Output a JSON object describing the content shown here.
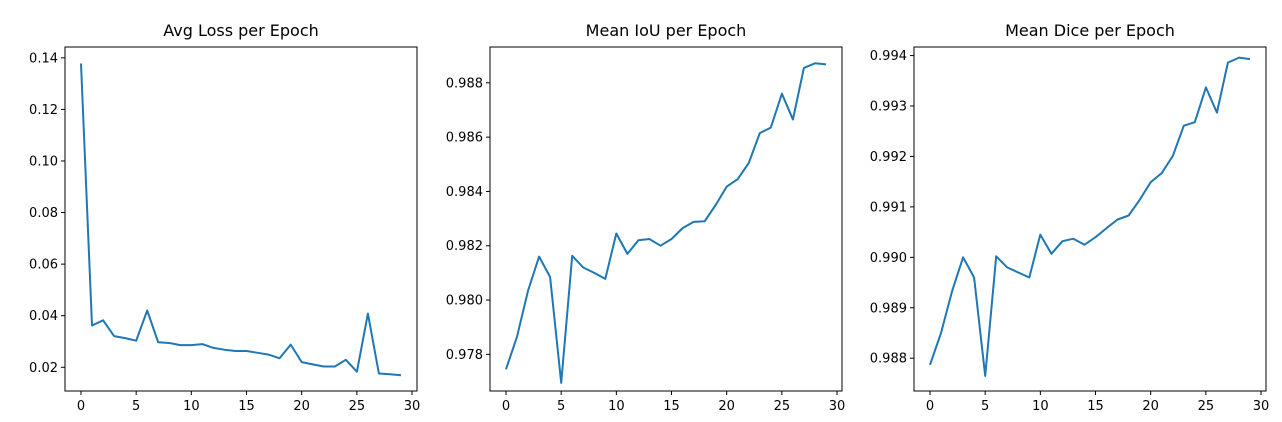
{
  "chart_data": [
    {
      "type": "line",
      "title": "Avg Loss per Epoch",
      "xlabel": "",
      "ylabel": "",
      "xlim": [
        -1.45,
        30.45
      ],
      "ylim": [
        0.0108,
        0.1442
      ],
      "xticks": [
        0,
        5,
        10,
        15,
        20,
        25,
        30
      ],
      "yticks": [
        0.02,
        0.04,
        0.06,
        0.08,
        0.1,
        0.12,
        0.14
      ],
      "ytick_labels": [
        "0.02",
        "0.04",
        "0.06",
        "0.08",
        "0.10",
        "0.12",
        "0.14"
      ],
      "grid": false,
      "color": "#1f77b4",
      "x": [
        0,
        1,
        2,
        3,
        4,
        5,
        6,
        7,
        8,
        9,
        10,
        11,
        12,
        13,
        14,
        15,
        16,
        17,
        18,
        19,
        20,
        21,
        22,
        23,
        24,
        25,
        26,
        27,
        28,
        29
      ],
      "y": [
        0.1378,
        0.0362,
        0.0382,
        0.0321,
        0.0313,
        0.0303,
        0.042,
        0.0297,
        0.0294,
        0.0286,
        0.0286,
        0.029,
        0.0275,
        0.0268,
        0.0263,
        0.0263,
        0.0256,
        0.0249,
        0.0235,
        0.0288,
        0.022,
        0.0211,
        0.0203,
        0.0203,
        0.0229,
        0.0183,
        0.0408,
        0.0176,
        0.0173,
        0.0169
      ]
    },
    {
      "type": "line",
      "title": "Mean IoU per Epoch",
      "xlabel": "",
      "ylabel": "",
      "xlim": [
        -1.45,
        30.45
      ],
      "ylim": [
        0.97665,
        0.98932
      ],
      "xticks": [
        0,
        5,
        10,
        15,
        20,
        25,
        30
      ],
      "yticks": [
        0.978,
        0.98,
        0.982,
        0.984,
        0.986,
        0.988
      ],
      "ytick_labels": [
        "0.978",
        "0.980",
        "0.982",
        "0.984",
        "0.986",
        "0.988"
      ],
      "grid": false,
      "color": "#1f77b4",
      "x": [
        0,
        1,
        2,
        3,
        4,
        5,
        6,
        7,
        8,
        9,
        10,
        11,
        12,
        13,
        14,
        15,
        16,
        17,
        18,
        19,
        20,
        21,
        22,
        23,
        24,
        25,
        26,
        27,
        28,
        29
      ],
      "y": [
        0.97745,
        0.97865,
        0.98035,
        0.9816,
        0.98085,
        0.97695,
        0.98163,
        0.9812,
        0.981,
        0.98078,
        0.98245,
        0.9817,
        0.9822,
        0.98225,
        0.982,
        0.98225,
        0.98265,
        0.98288,
        0.9829,
        0.9835,
        0.98418,
        0.98445,
        0.98505,
        0.98615,
        0.98635,
        0.9876,
        0.98665,
        0.98855,
        0.98872,
        0.98868
      ]
    },
    {
      "type": "line",
      "title": "Mean Dice per Epoch",
      "xlabel": "",
      "ylabel": "",
      "xlim": [
        -1.45,
        30.45
      ],
      "ylim": [
        0.98735,
        0.99417
      ],
      "xticks": [
        0,
        5,
        10,
        15,
        20,
        25,
        30
      ],
      "yticks": [
        0.988,
        0.989,
        0.99,
        0.991,
        0.992,
        0.993,
        0.994
      ],
      "ytick_labels": [
        "0.988",
        "0.989",
        "0.990",
        "0.991",
        "0.992",
        "0.993",
        "0.994"
      ],
      "grid": false,
      "color": "#1f77b4",
      "x": [
        0,
        1,
        2,
        3,
        4,
        5,
        6,
        7,
        8,
        9,
        10,
        11,
        12,
        13,
        14,
        15,
        16,
        17,
        18,
        19,
        20,
        21,
        22,
        23,
        24,
        25,
        26,
        27,
        28,
        29
      ],
      "y": [
        0.98787,
        0.9885,
        0.98933,
        0.99,
        0.9896,
        0.98765,
        0.99002,
        0.9898,
        0.9897,
        0.9896,
        0.99045,
        0.99007,
        0.99032,
        0.99037,
        0.99025,
        0.9904,
        0.99058,
        0.99075,
        0.99083,
        0.99114,
        0.99149,
        0.99167,
        0.99201,
        0.99261,
        0.99268,
        0.99337,
        0.99287,
        0.99386,
        0.99396,
        0.99393
      ]
    }
  ]
}
